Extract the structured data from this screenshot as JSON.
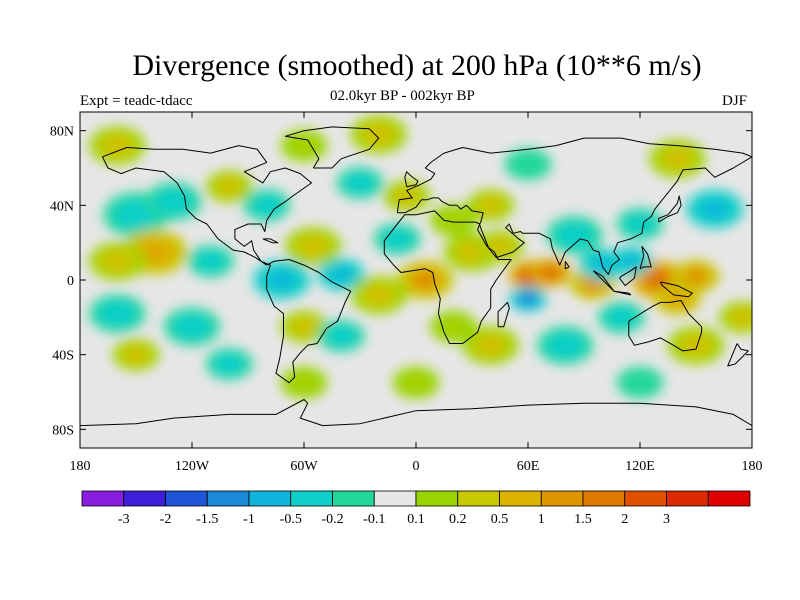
{
  "title": "Divergence (smoothed) at 200 hPa (10**6 m/s)",
  "experiment": "Expt = teadc-tdacc",
  "period": "02.0kyr BP - 002kyr BP",
  "season": "DJF",
  "axes": {
    "lat_ticks": [
      {
        "value": 80,
        "label": "80N"
      },
      {
        "value": 40,
        "label": "40N"
      },
      {
        "value": 0,
        "label": "0"
      },
      {
        "value": -40,
        "label": "40S"
      },
      {
        "value": -80,
        "label": "80S"
      }
    ],
    "lon_ticks": [
      {
        "value": -180,
        "label": "180"
      },
      {
        "value": -120,
        "label": "120W"
      },
      {
        "value": -60,
        "label": "60W"
      },
      {
        "value": 0,
        "label": "0"
      },
      {
        "value": 60,
        "label": "60E"
      },
      {
        "value": 120,
        "label": "120E"
      },
      {
        "value": 180,
        "label": "180"
      }
    ],
    "lon_range": [
      -180,
      180
    ],
    "lat_range": [
      -90,
      90
    ]
  },
  "colorbar": {
    "colors": [
      "#8a1ee0",
      "#3c20d8",
      "#1f55d6",
      "#1a8ad8",
      "#11b4dc",
      "#10cfc8",
      "#22d79a",
      "#e6e6e6",
      "#9ad400",
      "#c8c800",
      "#dcb400",
      "#de9600",
      "#df7800",
      "#df5000",
      "#dd2a00",
      "#e00000"
    ],
    "labels": [
      "-3",
      "-2",
      "-1.5",
      "-1",
      "-0.5",
      "-0.2",
      "-0.1",
      "0.1",
      "0.2",
      "0.5",
      "1",
      "1.5",
      "2",
      "3"
    ]
  },
  "blobs": [
    {
      "lon": 62,
      "lat": 2,
      "r": 10,
      "v": 3
    },
    {
      "lon": 72,
      "lat": 4,
      "r": 9,
      "v": 2
    },
    {
      "lon": 95,
      "lat": -2,
      "r": 10,
      "v": 1.5
    },
    {
      "lon": 130,
      "lat": 0,
      "r": 12,
      "v": 2
    },
    {
      "lon": 150,
      "lat": 2,
      "r": 10,
      "v": 1.5
    },
    {
      "lon": 140,
      "lat": -10,
      "r": 10,
      "v": 1
    },
    {
      "lon": 60,
      "lat": -10,
      "r": 8,
      "v": -2
    },
    {
      "lon": 100,
      "lat": 8,
      "r": 10,
      "v": -1
    },
    {
      "lon": 115,
      "lat": 10,
      "r": 9,
      "v": -1
    },
    {
      "lon": 85,
      "lat": 24,
      "r": 12,
      "v": -0.5
    },
    {
      "lon": 120,
      "lat": 30,
      "r": 10,
      "v": -0.5
    },
    {
      "lon": 160,
      "lat": 38,
      "r": 12,
      "v": -1
    },
    {
      "lon": -150,
      "lat": 35,
      "r": 14,
      "v": -0.5
    },
    {
      "lon": -130,
      "lat": 42,
      "r": 12,
      "v": -0.5
    },
    {
      "lon": -140,
      "lat": 15,
      "r": 14,
      "v": 1
    },
    {
      "lon": -160,
      "lat": 10,
      "r": 12,
      "v": 0.5
    },
    {
      "lon": -110,
      "lat": 10,
      "r": 10,
      "v": -0.5
    },
    {
      "lon": -72,
      "lat": 0,
      "r": 12,
      "v": -1
    },
    {
      "lon": -40,
      "lat": 3,
      "r": 10,
      "v": -1
    },
    {
      "lon": 5,
      "lat": 0,
      "r": 12,
      "v": 1.5
    },
    {
      "lon": 30,
      "lat": 15,
      "r": 12,
      "v": 0.5
    },
    {
      "lon": 45,
      "lat": 18,
      "r": 10,
      "v": 0.5
    },
    {
      "lon": -55,
      "lat": 18,
      "r": 12,
      "v": 0.5
    },
    {
      "lon": -20,
      "lat": -8,
      "r": 12,
      "v": 0.5
    },
    {
      "lon": -10,
      "lat": 22,
      "r": 10,
      "v": -0.5
    },
    {
      "lon": 20,
      "lat": 32,
      "r": 10,
      "v": 0.2
    },
    {
      "lon": 40,
      "lat": 40,
      "r": 10,
      "v": 0.5
    },
    {
      "lon": -30,
      "lat": 52,
      "r": 10,
      "v": -0.5
    },
    {
      "lon": -5,
      "lat": 45,
      "r": 10,
      "v": 0.5
    },
    {
      "lon": -100,
      "lat": 50,
      "r": 10,
      "v": 0.5
    },
    {
      "lon": -80,
      "lat": 40,
      "r": 10,
      "v": -0.5
    },
    {
      "lon": -160,
      "lat": 72,
      "r": 12,
      "v": 0.5
    },
    {
      "lon": -20,
      "lat": 78,
      "r": 12,
      "v": 0.5
    },
    {
      "lon": 140,
      "lat": 65,
      "r": 12,
      "v": 0.5
    },
    {
      "lon": 60,
      "lat": 62,
      "r": 10,
      "v": -0.2
    },
    {
      "lon": -60,
      "lat": 72,
      "r": 10,
      "v": 0.2
    },
    {
      "lon": -160,
      "lat": -18,
      "r": 12,
      "v": -0.5
    },
    {
      "lon": -120,
      "lat": -25,
      "r": 12,
      "v": -0.5
    },
    {
      "lon": -100,
      "lat": -45,
      "r": 10,
      "v": -0.5
    },
    {
      "lon": -150,
      "lat": -40,
      "r": 10,
      "v": 0.5
    },
    {
      "lon": -60,
      "lat": -25,
      "r": 10,
      "v": 0.5
    },
    {
      "lon": -40,
      "lat": -30,
      "r": 10,
      "v": -0.5
    },
    {
      "lon": 20,
      "lat": -25,
      "r": 10,
      "v": 0.2
    },
    {
      "lon": 40,
      "lat": -35,
      "r": 12,
      "v": 0.5
    },
    {
      "lon": 80,
      "lat": -35,
      "r": 12,
      "v": -0.5
    },
    {
      "lon": 110,
      "lat": -20,
      "r": 10,
      "v": -0.5
    },
    {
      "lon": 150,
      "lat": -35,
      "r": 12,
      "v": 0.5
    },
    {
      "lon": 175,
      "lat": -20,
      "r": 10,
      "v": 0.5
    },
    {
      "lon": 0,
      "lat": -55,
      "r": 10,
      "v": 0.2
    },
    {
      "lon": 120,
      "lat": -55,
      "r": 10,
      "v": -0.2
    },
    {
      "lon": -60,
      "lat": -55,
      "r": 10,
      "v": 0.2
    }
  ],
  "coastlines": [
    [
      [
        -168,
        66
      ],
      [
        -155,
        71
      ],
      [
        -140,
        70
      ],
      [
        -125,
        70
      ],
      [
        -110,
        68
      ],
      [
        -95,
        72
      ],
      [
        -85,
        70
      ],
      [
        -80,
        63
      ],
      [
        -92,
        58
      ],
      [
        -82,
        52
      ],
      [
        -78,
        58
      ],
      [
        -70,
        60
      ],
      [
        -62,
        57
      ],
      [
        -56,
        52
      ],
      [
        -66,
        45
      ],
      [
        -70,
        42
      ],
      [
        -76,
        38
      ],
      [
        -80,
        32
      ],
      [
        -81,
        26
      ],
      [
        -83,
        30
      ],
      [
        -90,
        30
      ],
      [
        -97,
        27
      ],
      [
        -97,
        22
      ],
      [
        -92,
        18
      ],
      [
        -88,
        21
      ],
      [
        -87,
        16
      ],
      [
        -83,
        10
      ],
      [
        -78,
        8
      ],
      [
        -80,
        2
      ],
      [
        -80,
        -5
      ],
      [
        -76,
        -14
      ],
      [
        -71,
        -18
      ],
      [
        -71,
        -30
      ],
      [
        -73,
        -42
      ],
      [
        -75,
        -50
      ],
      [
        -68,
        -55
      ],
      [
        -65,
        -52
      ],
      [
        -66,
        -44
      ],
      [
        -62,
        -39
      ],
      [
        -58,
        -35
      ],
      [
        -53,
        -34
      ],
      [
        -48,
        -26
      ],
      [
        -42,
        -22
      ],
      [
        -38,
        -12
      ],
      [
        -35,
        -6
      ],
      [
        -45,
        -1
      ],
      [
        -52,
        4
      ],
      [
        -60,
        8
      ],
      [
        -68,
        11
      ],
      [
        -76,
        10
      ],
      [
        -80,
        8
      ],
      [
        -86,
        12
      ],
      [
        -92,
        15
      ],
      [
        -98,
        16
      ],
      [
        -106,
        22
      ],
      [
        -112,
        30
      ],
      [
        -118,
        33
      ],
      [
        -123,
        38
      ],
      [
        -124,
        45
      ],
      [
        -128,
        52
      ],
      [
        -135,
        58
      ],
      [
        -150,
        60
      ],
      [
        -158,
        57
      ],
      [
        -165,
        60
      ],
      [
        -168,
        66
      ]
    ],
    [
      [
        -10,
        36
      ],
      [
        -9,
        43
      ],
      [
        -2,
        44
      ],
      [
        -5,
        48
      ],
      [
        2,
        51
      ],
      [
        8,
        54
      ],
      [
        10,
        57
      ],
      [
        5,
        60
      ],
      [
        8,
        63
      ],
      [
        15,
        68
      ],
      [
        25,
        71
      ],
      [
        40,
        68
      ],
      [
        50,
        69
      ],
      [
        60,
        70
      ],
      [
        75,
        72
      ],
      [
        90,
        76
      ],
      [
        110,
        76
      ],
      [
        125,
        73
      ],
      [
        140,
        72
      ],
      [
        160,
        70
      ],
      [
        175,
        68
      ],
      [
        180,
        66
      ],
      [
        170,
        60
      ],
      [
        160,
        55
      ],
      [
        155,
        60
      ],
      [
        143,
        59
      ],
      [
        140,
        53
      ],
      [
        132,
        43
      ],
      [
        128,
        38
      ],
      [
        126,
        34
      ],
      [
        122,
        31
      ],
      [
        121,
        25
      ],
      [
        115,
        22
      ],
      [
        108,
        20
      ],
      [
        106,
        15
      ],
      [
        109,
        11
      ],
      [
        105,
        8
      ],
      [
        103,
        3
      ],
      [
        100,
        7
      ],
      [
        98,
        15
      ],
      [
        95,
        16
      ],
      [
        92,
        21
      ],
      [
        88,
        22
      ],
      [
        80,
        15
      ],
      [
        77,
        8
      ],
      [
        73,
        17
      ],
      [
        72,
        22
      ],
      [
        66,
        25
      ],
      [
        57,
        25
      ],
      [
        56,
        26
      ],
      [
        52,
        25
      ],
      [
        50,
        30
      ],
      [
        48,
        28
      ],
      [
        55,
        22
      ],
      [
        58,
        20
      ],
      [
        52,
        15
      ],
      [
        43,
        12
      ],
      [
        39,
        17
      ],
      [
        35,
        27
      ],
      [
        34,
        30
      ],
      [
        32,
        31
      ],
      [
        25,
        31
      ],
      [
        20,
        31
      ],
      [
        15,
        32
      ],
      [
        10,
        37
      ],
      [
        0,
        35
      ],
      [
        -6,
        35
      ],
      [
        -10,
        30
      ],
      [
        -17,
        21
      ],
      [
        -17,
        14
      ],
      [
        -12,
        8
      ],
      [
        -8,
        4
      ],
      [
        -2,
        5
      ],
      [
        5,
        6
      ],
      [
        9,
        4
      ],
      [
        10,
        -2
      ],
      [
        13,
        -10
      ],
      [
        12,
        -18
      ],
      [
        15,
        -28
      ],
      [
        18,
        -34
      ],
      [
        25,
        -34
      ],
      [
        33,
        -28
      ],
      [
        35,
        -22
      ],
      [
        40,
        -15
      ],
      [
        40,
        -5
      ],
      [
        43,
        0
      ],
      [
        51,
        11
      ],
      [
        44,
        11
      ],
      [
        42,
        15
      ],
      [
        38,
        18
      ],
      [
        33,
        27
      ],
      [
        35,
        32
      ],
      [
        36,
        36
      ],
      [
        30,
        37
      ],
      [
        27,
        40
      ],
      [
        24,
        38
      ],
      [
        22,
        40
      ],
      [
        20,
        40
      ],
      [
        18,
        40
      ],
      [
        14,
        42
      ],
      [
        12,
        44
      ],
      [
        9,
        44
      ],
      [
        6,
        43
      ],
      [
        3,
        43
      ],
      [
        0,
        39
      ],
      [
        -4,
        37
      ],
      [
        -6,
        36
      ],
      [
        -10,
        36
      ]
    ],
    [
      [
        114,
        -22
      ],
      [
        114,
        -30
      ],
      [
        117,
        -35
      ],
      [
        125,
        -33
      ],
      [
        131,
        -31
      ],
      [
        138,
        -35
      ],
      [
        143,
        -38
      ],
      [
        150,
        -37
      ],
      [
        153,
        -28
      ],
      [
        153,
        -25
      ],
      [
        146,
        -18
      ],
      [
        142,
        -11
      ],
      [
        136,
        -12
      ],
      [
        131,
        -12
      ],
      [
        127,
        -14
      ],
      [
        122,
        -17
      ],
      [
        114,
        -22
      ]
    ],
    [
      [
        -55,
        60
      ],
      [
        -45,
        60
      ],
      [
        -40,
        65
      ],
      [
        -25,
        70
      ],
      [
        -20,
        76
      ],
      [
        -25,
        81
      ],
      [
        -45,
        82
      ],
      [
        -60,
        80
      ],
      [
        -70,
        77
      ],
      [
        -58,
        75
      ],
      [
        -55,
        70
      ],
      [
        -52,
        65
      ],
      [
        -55,
        60
      ]
    ],
    [
      [
        44,
        -25
      ],
      [
        47,
        -25
      ],
      [
        50,
        -15
      ],
      [
        49,
        -12
      ],
      [
        44,
        -17
      ],
      [
        44,
        -25
      ]
    ],
    [
      [
        -5,
        50
      ],
      [
        0,
        51
      ],
      [
        1,
        53
      ],
      [
        -3,
        56
      ],
      [
        -5,
        58
      ],
      [
        -6,
        55
      ],
      [
        -5,
        50
      ]
    ],
    [
      [
        130,
        31
      ],
      [
        135,
        34
      ],
      [
        140,
        36
      ],
      [
        142,
        40
      ],
      [
        141,
        45
      ],
      [
        140,
        41
      ],
      [
        135,
        35
      ],
      [
        130,
        33
      ],
      [
        130,
        31
      ]
    ],
    [
      [
        95,
        5
      ],
      [
        100,
        2
      ],
      [
        106,
        -6
      ],
      [
        105,
        -5
      ],
      [
        98,
        2
      ],
      [
        95,
        5
      ]
    ],
    [
      [
        106,
        -6
      ],
      [
        115,
        -8
      ],
      [
        114,
        -7
      ],
      [
        106,
        -6
      ]
    ],
    [
      [
        109,
        1
      ],
      [
        112,
        -3
      ],
      [
        117,
        1
      ],
      [
        118,
        7
      ],
      [
        115,
        5
      ],
      [
        110,
        2
      ],
      [
        109,
        1
      ]
    ],
    [
      [
        131,
        -1
      ],
      [
        140,
        -3
      ],
      [
        148,
        -7
      ],
      [
        146,
        -9
      ],
      [
        138,
        -8
      ],
      [
        132,
        -3
      ],
      [
        131,
        -1
      ]
    ],
    [
      [
        120,
        6
      ],
      [
        122,
        13
      ],
      [
        121,
        18
      ],
      [
        124,
        14
      ],
      [
        126,
        7
      ],
      [
        122,
        7
      ],
      [
        120,
        6
      ]
    ],
    [
      [
        172,
        -34
      ],
      [
        174,
        -37
      ],
      [
        178,
        -38
      ],
      [
        175,
        -41
      ],
      [
        171,
        -45
      ],
      [
        167,
        -46
      ],
      [
        172,
        -34
      ]
    ],
    [
      [
        -180,
        -78
      ],
      [
        -150,
        -77
      ],
      [
        -130,
        -74
      ],
      [
        -100,
        -72
      ],
      [
        -75,
        -72
      ],
      [
        -60,
        -64
      ],
      [
        -58,
        -66
      ],
      [
        -62,
        -74
      ],
      [
        -50,
        -78
      ],
      [
        -30,
        -77
      ],
      [
        0,
        -70
      ],
      [
        30,
        -69
      ],
      [
        60,
        -67
      ],
      [
        90,
        -66
      ],
      [
        120,
        -66
      ],
      [
        150,
        -68
      ],
      [
        170,
        -72
      ],
      [
        180,
        -78
      ]
    ],
    [
      [
        -82,
        22
      ],
      [
        -78,
        22
      ],
      [
        -74,
        20
      ],
      [
        -77,
        20
      ],
      [
        -82,
        22
      ]
    ],
    [
      [
        80,
        10
      ],
      [
        82,
        7
      ],
      [
        80,
        6
      ],
      [
        80,
        10
      ]
    ]
  ]
}
